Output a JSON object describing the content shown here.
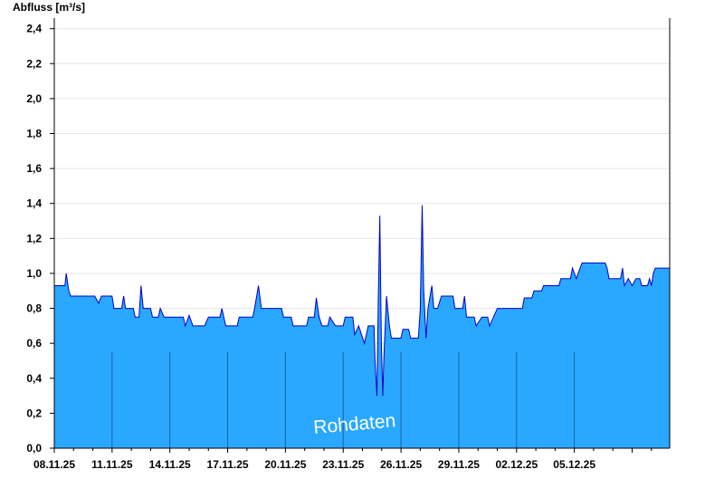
{
  "chart_data": {
    "type": "area",
    "title": "Abfluss [m³/s]",
    "xlabel": "",
    "ylabel": "Abfluss [m³/s]",
    "ylim": [
      0,
      2.45
    ],
    "yticks": [
      "0,0",
      "0,2",
      "0,4",
      "0,6",
      "0,8",
      "1,0",
      "1,2",
      "1,4",
      "1,6",
      "1,8",
      "2,0",
      "2,2",
      "2,4"
    ],
    "xrange_days": [
      "08.11.25",
      "17.12.25"
    ],
    "xticks": [
      "08.11.25",
      "11.11.25",
      "14.11.25",
      "17.11.25",
      "20.11.25",
      "23.11.25",
      "26.11.25",
      "29.11.25",
      "02.12.25",
      "05.12.25"
    ],
    "grid": true,
    "annotation": "Rohdaten",
    "colors": {
      "fill": "#2aa8ff",
      "line": "#0000cc",
      "vline": "#1a5fa8",
      "grid": "#e6e6e6"
    },
    "series": [
      {
        "values": [
          [
            0.0,
            0.93
          ],
          [
            0.55,
            0.93
          ],
          [
            0.62,
            1.0
          ],
          [
            0.75,
            0.9
          ],
          [
            0.85,
            0.87
          ],
          [
            2.1,
            0.87
          ],
          [
            2.3,
            0.83
          ],
          [
            2.45,
            0.87
          ],
          [
            3.0,
            0.87
          ],
          [
            3.1,
            0.8
          ],
          [
            3.5,
            0.8
          ],
          [
            3.6,
            0.87
          ],
          [
            3.7,
            0.8
          ],
          [
            4.1,
            0.8
          ],
          [
            4.2,
            0.75
          ],
          [
            4.4,
            0.75
          ],
          [
            4.5,
            0.93
          ],
          [
            4.62,
            0.8
          ],
          [
            5.0,
            0.8
          ],
          [
            5.1,
            0.75
          ],
          [
            5.4,
            0.75
          ],
          [
            5.5,
            0.8
          ],
          [
            5.7,
            0.75
          ],
          [
            6.7,
            0.75
          ],
          [
            6.8,
            0.7
          ],
          [
            7.0,
            0.76
          ],
          [
            7.2,
            0.7
          ],
          [
            7.8,
            0.7
          ],
          [
            8.0,
            0.75
          ],
          [
            8.6,
            0.75
          ],
          [
            8.7,
            0.8
          ],
          [
            8.9,
            0.7
          ],
          [
            9.5,
            0.7
          ],
          [
            9.6,
            0.75
          ],
          [
            10.3,
            0.75
          ],
          [
            10.4,
            0.8
          ],
          [
            10.6,
            0.93
          ],
          [
            10.75,
            0.8
          ],
          [
            11.8,
            0.8
          ],
          [
            11.9,
            0.75
          ],
          [
            12.3,
            0.75
          ],
          [
            12.4,
            0.7
          ],
          [
            13.1,
            0.7
          ],
          [
            13.2,
            0.75
          ],
          [
            13.5,
            0.75
          ],
          [
            13.6,
            0.86
          ],
          [
            13.75,
            0.75
          ],
          [
            13.9,
            0.7
          ],
          [
            14.2,
            0.7
          ],
          [
            14.3,
            0.75
          ],
          [
            14.6,
            0.7
          ],
          [
            15.0,
            0.7
          ],
          [
            15.1,
            0.75
          ],
          [
            15.5,
            0.75
          ],
          [
            15.6,
            0.65
          ],
          [
            15.8,
            0.7
          ],
          [
            16.1,
            0.6
          ],
          [
            16.3,
            0.7
          ],
          [
            16.6,
            0.7
          ],
          [
            16.65,
            0.5
          ],
          [
            16.75,
            0.3
          ],
          [
            16.82,
            0.85
          ],
          [
            16.9,
            1.33
          ],
          [
            16.98,
            0.6
          ],
          [
            17.05,
            0.3
          ],
          [
            17.12,
            0.55
          ],
          [
            17.25,
            0.87
          ],
          [
            17.4,
            0.7
          ],
          [
            17.5,
            0.63
          ],
          [
            18.0,
            0.63
          ],
          [
            18.1,
            0.68
          ],
          [
            18.4,
            0.68
          ],
          [
            18.5,
            0.63
          ],
          [
            18.9,
            0.63
          ],
          [
            19.0,
            0.8
          ],
          [
            19.1,
            1.39
          ],
          [
            19.18,
            0.9
          ],
          [
            19.3,
            0.63
          ],
          [
            19.4,
            0.8
          ],
          [
            19.6,
            0.93
          ],
          [
            19.7,
            0.8
          ],
          [
            19.9,
            0.8
          ],
          [
            20.1,
            0.87
          ],
          [
            20.7,
            0.87
          ],
          [
            20.8,
            0.8
          ],
          [
            21.2,
            0.8
          ],
          [
            21.3,
            0.87
          ],
          [
            21.4,
            0.75
          ],
          [
            21.8,
            0.75
          ],
          [
            21.9,
            0.7
          ],
          [
            22.2,
            0.75
          ],
          [
            22.5,
            0.75
          ],
          [
            22.6,
            0.7
          ],
          [
            22.8,
            0.75
          ],
          [
            23.0,
            0.8
          ],
          [
            24.3,
            0.8
          ],
          [
            24.4,
            0.86
          ],
          [
            24.8,
            0.86
          ],
          [
            24.9,
            0.9
          ],
          [
            25.3,
            0.9
          ],
          [
            25.4,
            0.93
          ],
          [
            26.2,
            0.93
          ],
          [
            26.3,
            0.97
          ],
          [
            26.8,
            0.97
          ],
          [
            26.9,
            1.03
          ],
          [
            27.1,
            0.97
          ],
          [
            27.3,
            1.03
          ],
          [
            27.4,
            1.06
          ],
          [
            28.6,
            1.06
          ],
          [
            28.7,
            1.03
          ],
          [
            28.8,
            0.97
          ],
          [
            29.4,
            0.97
          ],
          [
            29.5,
            1.03
          ],
          [
            29.6,
            0.93
          ],
          [
            29.8,
            0.97
          ],
          [
            30.0,
            0.93
          ],
          [
            30.2,
            0.97
          ],
          [
            30.4,
            0.97
          ],
          [
            30.5,
            0.93
          ],
          [
            30.8,
            0.93
          ],
          [
            30.9,
            0.97
          ],
          [
            31.0,
            0.93
          ],
          [
            31.1,
            1.0
          ],
          [
            31.2,
            1.03
          ]
        ]
      }
    ]
  }
}
